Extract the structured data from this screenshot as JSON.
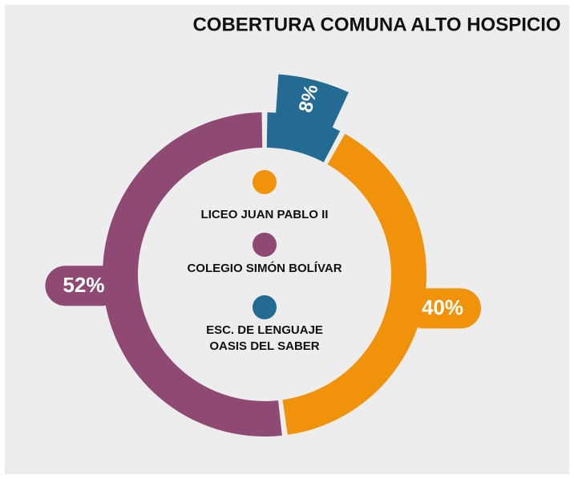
{
  "chart_data": {
    "type": "donut",
    "title": "COBERTURA COMUNA ALTO HOSPICIO",
    "series": [
      {
        "name": "LICEO JUAN PABLO II",
        "color": "#f0920a",
        "values": [
          40
        ],
        "value_labels": [
          "40%"
        ]
      },
      {
        "name": "COLEGIO SIMÓN BOLÍVAR",
        "color": "#8e4a73",
        "values": [
          52
        ],
        "value_labels": [
          "52%"
        ]
      },
      {
        "name": "ESC. DE LENGUAJE OASIS DEL SABER",
        "color": "#246b93",
        "values": [
          8
        ],
        "value_labels": [
          "8%"
        ]
      }
    ]
  }
}
